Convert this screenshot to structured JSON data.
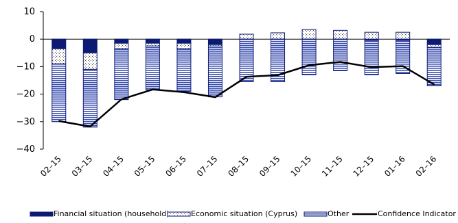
{
  "chart_data": {
    "type": "bar",
    "subtype": "stacked-bar-with-line",
    "categories": [
      "02-15",
      "03-15",
      "04-15",
      "05-15",
      "06-15",
      "07-15",
      "08-15",
      "09-15",
      "10-15",
      "11-15",
      "12-15",
      "01-16",
      "02-16"
    ],
    "series": [
      {
        "name": "Financial situation (household)",
        "kind": "bar",
        "color": "#0d1a73",
        "pattern": "solid",
        "values": [
          -3.5,
          -5,
          -1.5,
          -1.5,
          -1.5,
          -2,
          0,
          0,
          0,
          0,
          -0.5,
          -0.5,
          -2
        ]
      },
      {
        "name": "Economic situation (Cyprus)",
        "kind": "bar",
        "color": "#ffffff",
        "pattern": "dots",
        "values": [
          -5.5,
          -6,
          -2,
          -1,
          -2,
          -0.5,
          1.8,
          2.3,
          3.5,
          3.2,
          2.5,
          2.5,
          -1
        ]
      },
      {
        "name": "Other",
        "kind": "bar",
        "color": "#3b4fb0",
        "pattern": "horizontal-lines",
        "values": [
          -21,
          -21,
          -18.5,
          -16,
          -15.5,
          -18.5,
          -15.5,
          -15.5,
          -13,
          -11.5,
          -12.5,
          -12,
          -14
        ]
      },
      {
        "name": "Confidence Indicator",
        "kind": "line",
        "color": "#000000",
        "values": [
          -29.8,
          -31.8,
          -21.9,
          -18.3,
          -19.3,
          -21.1,
          -13.7,
          -13.1,
          -9.5,
          -8.3,
          -10.2,
          -9.8,
          -16.5
        ]
      }
    ],
    "ylim": [
      -40,
      10
    ],
    "yticks": [
      10,
      0,
      -10,
      -20,
      -30,
      -40
    ],
    "grid": false,
    "legend_position": "bottom"
  }
}
